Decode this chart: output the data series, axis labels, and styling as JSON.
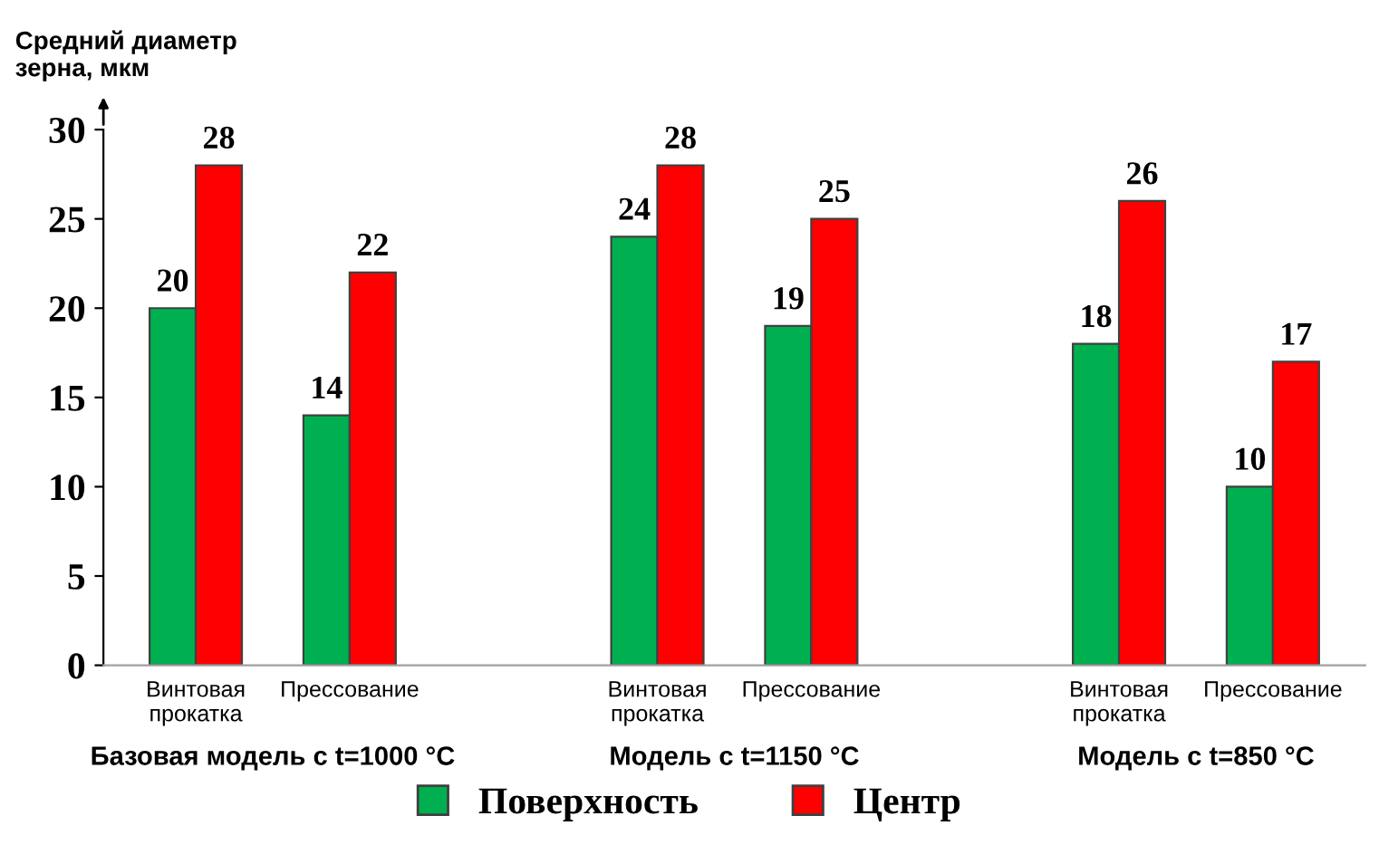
{
  "chart_data": {
    "type": "bar",
    "ylabel": "Средний диаметр\nзерна, мкм",
    "categories": [
      "Винтовая\nпрокатка",
      "Прессование",
      null,
      "Винтовая\nпрокатка",
      "Прессование",
      null,
      "Винтовая\nпрокатка",
      "Прессование"
    ],
    "series": [
      {
        "name": "Поверхность",
        "color": "#00b050",
        "values": [
          20,
          14,
          null,
          24,
          19,
          null,
          18,
          10
        ]
      },
      {
        "name": "Центр",
        "color": "#ff0000",
        "values": [
          28,
          22,
          null,
          28,
          25,
          null,
          26,
          17
        ]
      }
    ],
    "ylim": [
      0,
      30
    ],
    "yticks": [
      0,
      5,
      10,
      15,
      20,
      25,
      30
    ],
    "data_labels": true,
    "legend": "bottom",
    "grid": false,
    "annotations": [
      "Базовая модель с t=1000 °C",
      "Модель с t=1150 °C",
      "Модель с t=850 °C"
    ]
  }
}
